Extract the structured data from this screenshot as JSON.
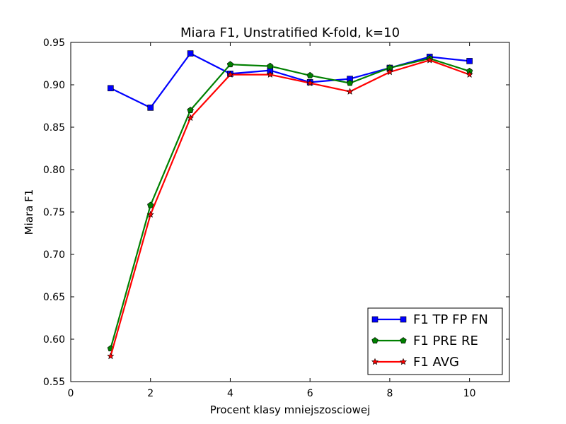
{
  "chart_data": {
    "type": "line",
    "title": "Miara F1, Unstratified K-fold, k=10",
    "xlabel": "Procent klasy mniejszosciowej",
    "ylabel": "Miara F1",
    "xlim": [
      0,
      11
    ],
    "ylim": [
      0.55,
      0.95
    ],
    "xticks": [
      0,
      2,
      4,
      6,
      8,
      10
    ],
    "xtick_labels": [
      "0",
      "2",
      "4",
      "6",
      "8",
      "10"
    ],
    "yticks": [
      0.55,
      0.6,
      0.65,
      0.7,
      0.75,
      0.8,
      0.85,
      0.9,
      0.95
    ],
    "ytick_labels": [
      "0.55",
      "0.60",
      "0.65",
      "0.70",
      "0.75",
      "0.80",
      "0.85",
      "0.90",
      "0.95"
    ],
    "grid": false,
    "legend_position": "lower-right",
    "x": [
      1,
      2,
      3,
      4,
      5,
      6,
      7,
      8,
      9,
      10
    ],
    "series": [
      {
        "name": "F1 TP FP FN",
        "color": "#0000ff",
        "marker": "square",
        "values": [
          0.896,
          0.873,
          0.937,
          0.913,
          0.917,
          0.903,
          0.907,
          0.92,
          0.933,
          0.928
        ]
      },
      {
        "name": "F1 PRE RE",
        "color": "#008000",
        "marker": "pentagon",
        "values": [
          0.589,
          0.758,
          0.87,
          0.924,
          0.922,
          0.911,
          0.902,
          0.92,
          0.931,
          0.916
        ]
      },
      {
        "name": "F1 AVG",
        "color": "#ff0000",
        "marker": "star",
        "values": [
          0.58,
          0.747,
          0.861,
          0.912,
          0.912,
          0.902,
          0.892,
          0.915,
          0.929,
          0.912
        ]
      }
    ]
  }
}
